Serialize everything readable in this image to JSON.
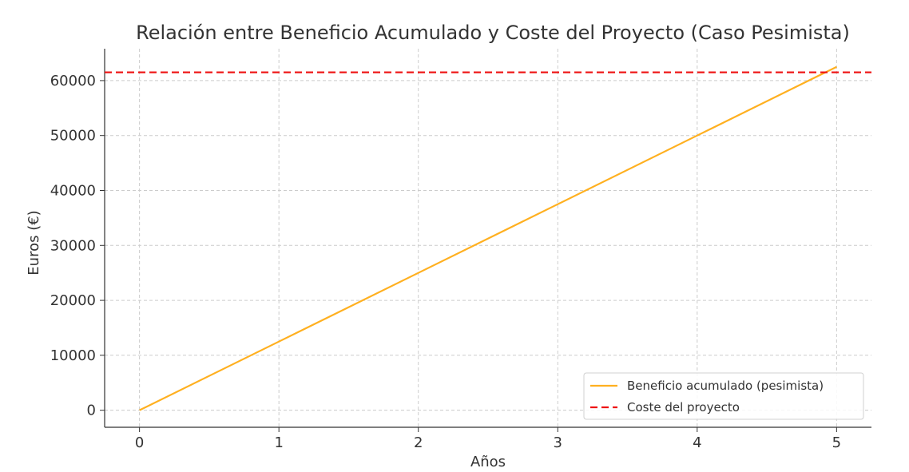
{
  "chart_data": {
    "type": "line",
    "title": "Relación entre Beneficio Acumulado y Coste del Proyecto (Caso Pesimista)",
    "xlabel": "Años",
    "ylabel": "Euros (€)",
    "xlim": [
      -0.25,
      5.25
    ],
    "ylim": [
      -3100,
      65800
    ],
    "xticks": [
      0,
      1,
      2,
      3,
      4,
      5
    ],
    "yticks": [
      0,
      10000,
      20000,
      30000,
      40000,
      50000,
      60000
    ],
    "grid": true,
    "legend_position": "lower right",
    "series": [
      {
        "name": "Beneficio acumulado (pesimista)",
        "style": "solid",
        "color": "#FFB020",
        "x": [
          0,
          1,
          2,
          3,
          4,
          5
        ],
        "y": [
          0,
          12500,
          25000,
          37500,
          50000,
          62500
        ]
      },
      {
        "name": "Coste del proyecto",
        "style": "dashed",
        "color": "#EE1111",
        "kind": "hline",
        "y": 61500
      }
    ]
  }
}
